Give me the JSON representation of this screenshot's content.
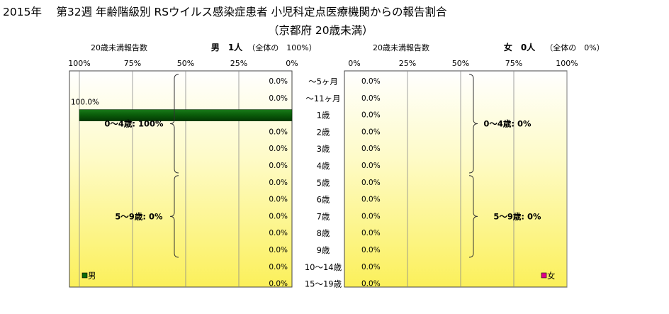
{
  "title": "2015年　 第32週 年齢階級別 RSウイルス感染症患者 小児科定点医療機関からの報告割合",
  "subtitle": "（京都府 20歳未満）",
  "chart_data": {
    "type": "bar",
    "orientation": "horizontal-back-to-back",
    "categories": [
      "～5ヶ月",
      "～11ヶ月",
      "1歳",
      "2歳",
      "3歳",
      "4歳",
      "5歳",
      "6歳",
      "7歳",
      "8歳",
      "9歳",
      "10～14歳",
      "15～19歳"
    ],
    "series": [
      {
        "name": "男",
        "header_label": "男　1人",
        "total_label": "（全体の　100%）",
        "values": [
          0.0,
          0.0,
          100.0,
          0.0,
          0.0,
          0.0,
          0.0,
          0.0,
          0.0,
          0.0,
          0.0,
          0.0,
          0.0
        ],
        "value_labels": [
          "0.0%",
          "0.0%",
          "100.0%",
          "0.0%",
          "0.0%",
          "0.0%",
          "0.0%",
          "0.0%",
          "0.0%",
          "0.0%",
          "0.0%",
          "0.0%",
          "0.0%"
        ],
        "color": "#0a6b0a",
        "group_labels": [
          "0～4歳: 100%",
          "5～9歳: 0%"
        ]
      },
      {
        "name": "女",
        "header_label": "女　0人",
        "total_label": "（全体の　0%）",
        "values": [
          0.0,
          0.0,
          0.0,
          0.0,
          0.0,
          0.0,
          0.0,
          0.0,
          0.0,
          0.0,
          0.0,
          0.0,
          0.0
        ],
        "value_labels": [
          "0.0%",
          "0.0%",
          "0.0%",
          "0.0%",
          "0.0%",
          "0.0%",
          "0.0%",
          "0.0%",
          "0.0%",
          "0.0%",
          "0.0%",
          "0.0%",
          "0.0%"
        ],
        "color": "#e0008a",
        "group_labels": [
          "0～4歳: 0%",
          "5～9歳: 0%"
        ]
      }
    ],
    "axis_caption": "20歳未満報告数",
    "left_ticks": [
      "100%",
      "75%",
      "50%",
      "25%",
      "0%"
    ],
    "right_ticks": [
      "0%",
      "25%",
      "50%",
      "75%",
      "100%"
    ],
    "xlim": [
      0,
      100
    ],
    "grid": true,
    "legend_position": "bottom-inside"
  }
}
